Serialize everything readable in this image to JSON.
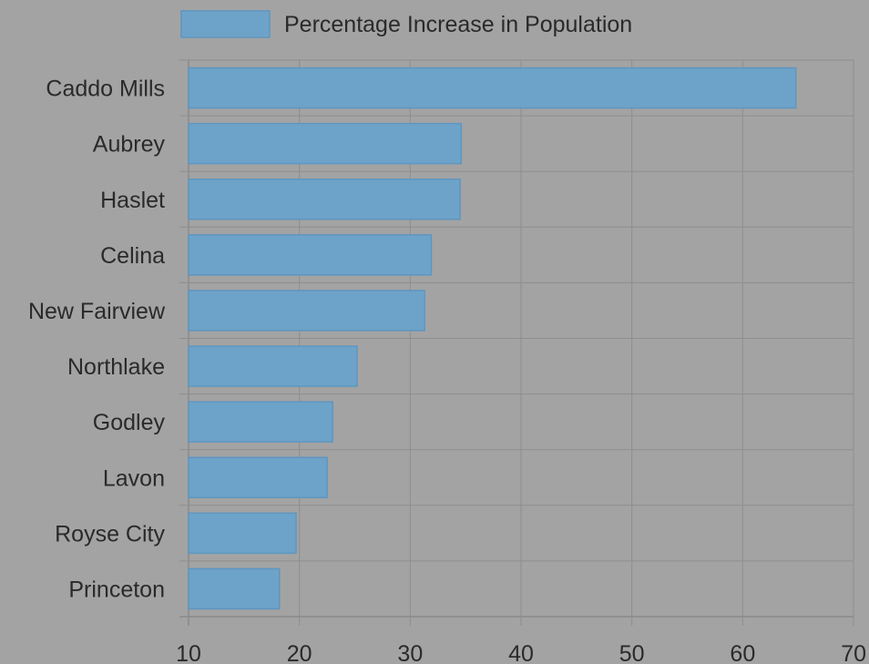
{
  "chart_data": {
    "type": "bar",
    "orientation": "horizontal",
    "categories": [
      "Caddo Mills",
      "Aubrey",
      "Haslet",
      "Celina",
      "New Fairview",
      "Northlake",
      "Godley",
      "Lavon",
      "Royse City",
      "Princeton"
    ],
    "series": [
      {
        "name": "Percentage Increase in Population",
        "values": [
          64.8,
          34.6,
          34.5,
          31.9,
          31.3,
          25.2,
          23.0,
          22.5,
          19.7,
          18.2
        ]
      }
    ],
    "xlim": [
      10,
      70
    ],
    "xticks": [
      "10",
      "20",
      "30",
      "40",
      "50",
      "60",
      "70"
    ],
    "grid": true,
    "legend_position": "top",
    "colors": {
      "bar_fill": "#6ea3c9",
      "bar_border": "#5e96c0",
      "background": "#a3a3a3",
      "grid": "#8e8e8e",
      "text": "#2a2a2a"
    }
  }
}
